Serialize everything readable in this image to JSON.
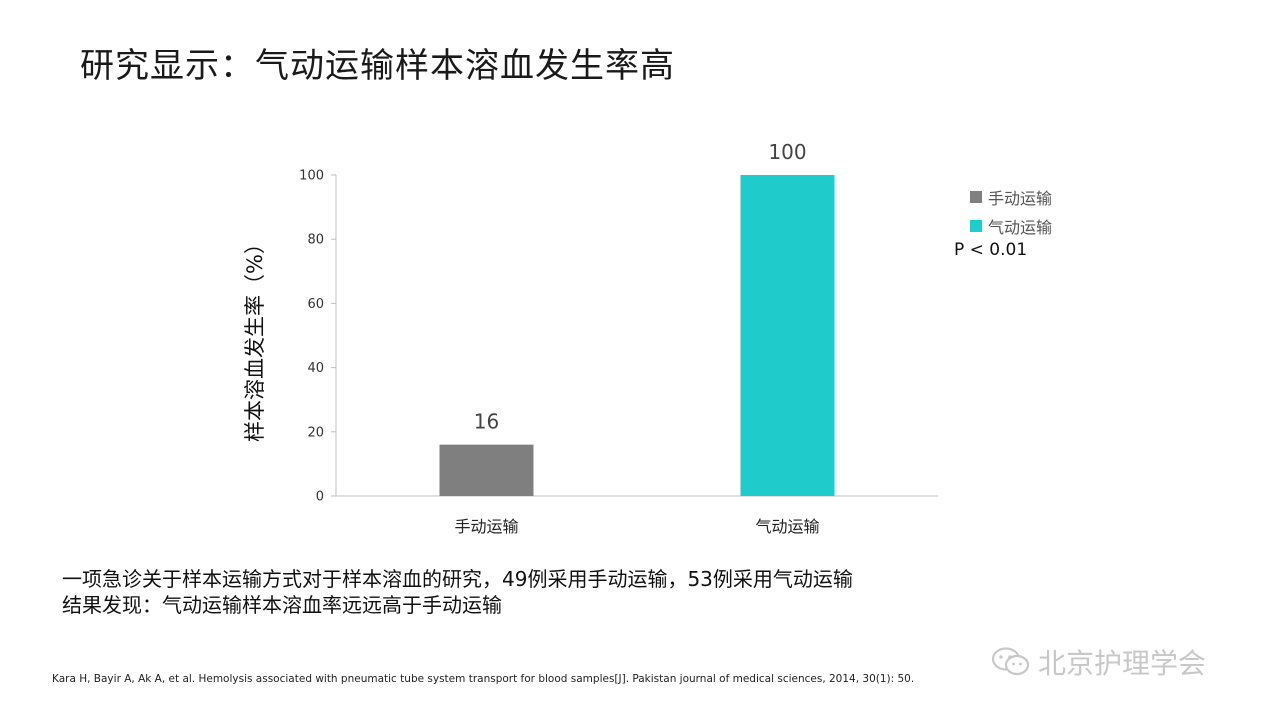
{
  "page": {
    "title": "研究显示：气动运输样本溶血发生率高"
  },
  "chart_data": {
    "type": "bar",
    "categories": [
      "手动运输",
      "气动运输"
    ],
    "values": [
      16,
      100
    ],
    "data_labels": [
      "16",
      "100"
    ],
    "ylabel": "样本溶血发生率（%）",
    "xlabel": "",
    "ylim": [
      0,
      100
    ],
    "yticks": [
      "0",
      "20",
      "40",
      "60",
      "80",
      "100"
    ],
    "colors": [
      "#7f7f7f",
      "#1fcbcb"
    ],
    "grid": false,
    "legend": {
      "placement": "right",
      "entries": [
        "手动运输",
        "气动运输"
      ]
    },
    "annotation": "P < 0.01"
  },
  "notes": {
    "line1": "一项急诊关于样本运输方式对于样本溶血的研究，49例采用手动运输，53例采用气动运输",
    "line2": "结果发现：气动运输样本溶血率远远高于手动运输"
  },
  "reference": "Kara H, Bayir A, Ak A, et al. Hemolysis associated with pneumatic tube system transport for blood samples[J]. Pakistan journal of medical sciences, 2014, 30(1): 50.",
  "watermark": {
    "icon": "wechat-icon",
    "text": "北京护理学会"
  }
}
